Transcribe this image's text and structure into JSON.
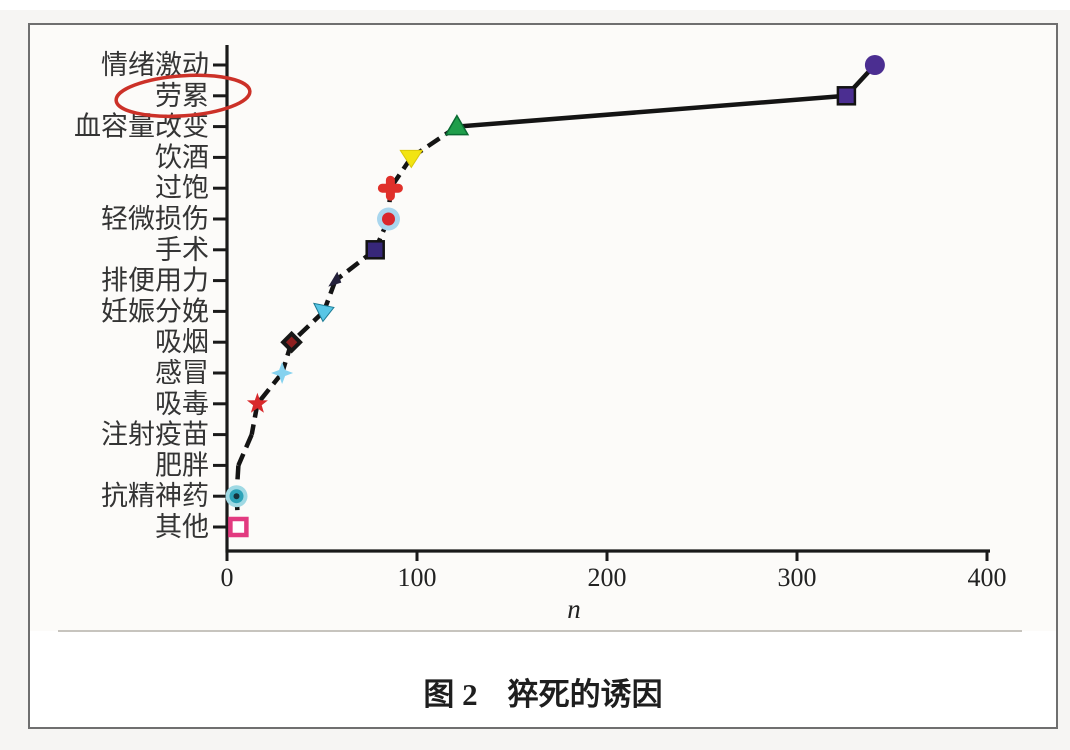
{
  "figure": {
    "caption_label": "图 2",
    "caption_title": "猝死的诱因"
  },
  "chart_data": {
    "type": "scatter",
    "orientation": "horizontal-category",
    "title": "图 2 猝死的诱因",
    "xlabel": "n",
    "ylabel": "",
    "xlim": [
      0,
      400
    ],
    "x_ticks": [
      "0",
      "100",
      "200",
      "300",
      "400"
    ],
    "grid": "off",
    "legend": "none",
    "categories": [
      "情绪激动",
      "劳累",
      "血容量改变",
      "饮酒",
      "过饱",
      "轻微损伤",
      "手术",
      "排便用力",
      "妊娠分娩",
      "吸烟",
      "感冒",
      "吸毒",
      "注射疫苗",
      "肥胖",
      "抗精神药",
      "其他"
    ],
    "values": [
      341,
      326,
      121,
      97,
      86,
      85,
      78,
      57,
      51,
      34,
      29,
      16,
      13,
      6,
      5,
      6
    ],
    "points": [
      {
        "category": "情绪激动",
        "value": 341,
        "marker": "circle",
        "color": "#4b2e91"
      },
      {
        "category": "劳累",
        "value": 326,
        "marker": "square",
        "color": "#4b2e91"
      },
      {
        "category": "血容量改变",
        "value": 121,
        "marker": "triangle-up",
        "color": "#1f9e4b"
      },
      {
        "category": "饮酒",
        "value": 97,
        "marker": "triangle-down",
        "color": "#f2e412"
      },
      {
        "category": "过饱",
        "value": 86,
        "marker": "plus",
        "color": "#e0302a"
      },
      {
        "category": "轻微损伤",
        "value": 85,
        "marker": "circle-ringed",
        "color": "#d9262b",
        "ring_color": "#a9d6ee"
      },
      {
        "category": "手术",
        "value": 78,
        "marker": "square",
        "color": "#372779"
      },
      {
        "category": "排便用力",
        "value": 57,
        "marker": "arrow",
        "color": "#23203a"
      },
      {
        "category": "妊娠分娩",
        "value": 51,
        "marker": "triangle-down-left",
        "color": "#58c6e6"
      },
      {
        "category": "吸烟",
        "value": 34,
        "marker": "diamond-dot",
        "color": "#171717",
        "dot_color": "#8e2020"
      },
      {
        "category": "感冒",
        "value": 29,
        "marker": "star4",
        "color": "#85d2ef"
      },
      {
        "category": "吸毒",
        "value": 16,
        "marker": "star5",
        "color": "#d8292c"
      },
      {
        "category": "注射疫苗",
        "value": 13,
        "marker": "none",
        "color": "#141414"
      },
      {
        "category": "肥胖",
        "value": 6,
        "marker": "none",
        "color": "#141414"
      },
      {
        "category": "抗精神药",
        "value": 5,
        "marker": "donut",
        "color": "#2da3b8",
        "halo_color": "#9fd9e4",
        "dot_color": "#17333c"
      },
      {
        "category": "其他",
        "value": 6,
        "marker": "square-open",
        "color": "#e23a80"
      }
    ],
    "line": {
      "color": "#141414",
      "style": "dashed",
      "solid_min_value": 100
    },
    "annotation": {
      "type": "hand-drawn-ellipse",
      "target_category": "劳累",
      "color": "#cc3128"
    }
  }
}
